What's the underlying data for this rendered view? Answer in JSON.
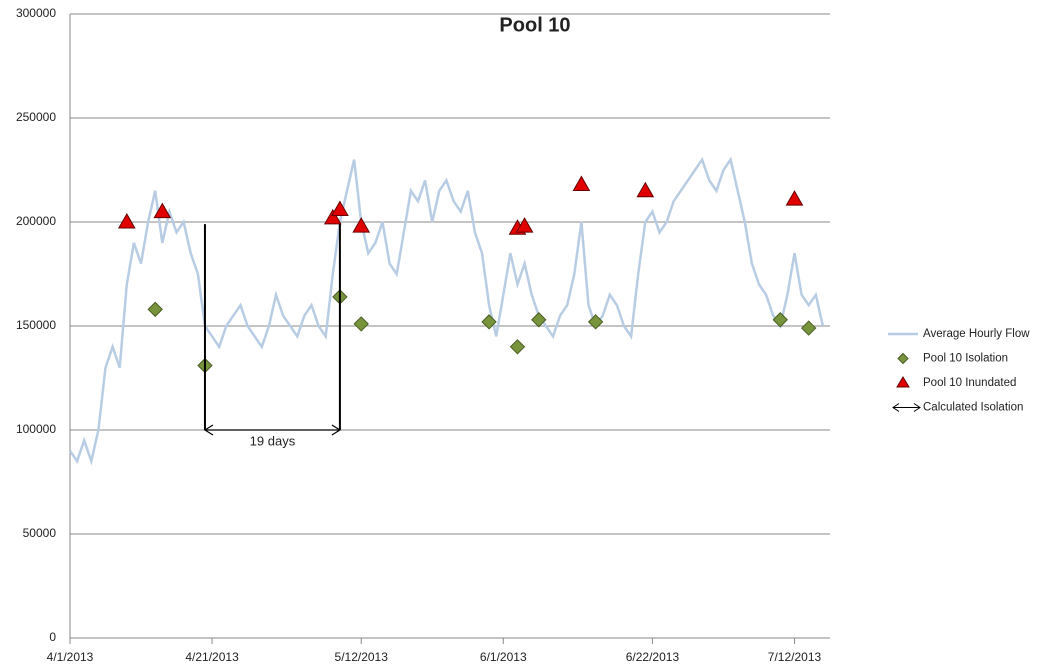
{
  "chart_data": {
    "type": "line",
    "title": "Pool 10",
    "xlim": [
      "2013-04-01",
      "2013-07-17"
    ],
    "xticks": [
      {
        "value": "2013-04-01",
        "label": "4/1/2013"
      },
      {
        "value": "2013-04-21",
        "label": "4/21/2013"
      },
      {
        "value": "2013-05-12",
        "label": "5/12/2013"
      },
      {
        "value": "2013-06-01",
        "label": "6/1/2013"
      },
      {
        "value": "2013-06-22",
        "label": "6/22/2013"
      },
      {
        "value": "2013-07-12",
        "label": "7/12/2013"
      }
    ],
    "ylim": [
      0,
      300000
    ],
    "yticks": [
      0,
      50000,
      100000,
      150000,
      200000,
      250000,
      300000
    ],
    "grid": true,
    "legend": "right",
    "series": [
      {
        "name": "Average Hourly Flow",
        "color": "#b8cce4",
        "marker": "line",
        "x": [
          "2013-04-01",
          "2013-04-02",
          "2013-04-03",
          "2013-04-04",
          "2013-04-05",
          "2013-04-06",
          "2013-04-07",
          "2013-04-08",
          "2013-04-09",
          "2013-04-10",
          "2013-04-11",
          "2013-04-12",
          "2013-04-13",
          "2013-04-14",
          "2013-04-15",
          "2013-04-16",
          "2013-04-17",
          "2013-04-18",
          "2013-04-19",
          "2013-04-20",
          "2013-04-21",
          "2013-04-22",
          "2013-04-23",
          "2013-04-24",
          "2013-04-25",
          "2013-04-26",
          "2013-04-27",
          "2013-04-28",
          "2013-04-29",
          "2013-04-30",
          "2013-05-01",
          "2013-05-02",
          "2013-05-03",
          "2013-05-04",
          "2013-05-05",
          "2013-05-06",
          "2013-05-07",
          "2013-05-08",
          "2013-05-09",
          "2013-05-10",
          "2013-05-11",
          "2013-05-12",
          "2013-05-13",
          "2013-05-14",
          "2013-05-15",
          "2013-05-16",
          "2013-05-17",
          "2013-05-18",
          "2013-05-19",
          "2013-05-20",
          "2013-05-21",
          "2013-05-22",
          "2013-05-23",
          "2013-05-24",
          "2013-05-25",
          "2013-05-26",
          "2013-05-27",
          "2013-05-28",
          "2013-05-29",
          "2013-05-30",
          "2013-05-31",
          "2013-06-01",
          "2013-06-02",
          "2013-06-03",
          "2013-06-04",
          "2013-06-05",
          "2013-06-06",
          "2013-06-07",
          "2013-06-08",
          "2013-06-09",
          "2013-06-10",
          "2013-06-11",
          "2013-06-12",
          "2013-06-13",
          "2013-06-14",
          "2013-06-15",
          "2013-06-16",
          "2013-06-17",
          "2013-06-18",
          "2013-06-19",
          "2013-06-20",
          "2013-06-21",
          "2013-06-22",
          "2013-06-23",
          "2013-06-24",
          "2013-06-25",
          "2013-06-26",
          "2013-06-27",
          "2013-06-28",
          "2013-06-29",
          "2013-06-30",
          "2013-07-01",
          "2013-07-02",
          "2013-07-03",
          "2013-07-04",
          "2013-07-05",
          "2013-07-06",
          "2013-07-07",
          "2013-07-08",
          "2013-07-09",
          "2013-07-10",
          "2013-07-11",
          "2013-07-12",
          "2013-07-13",
          "2013-07-14",
          "2013-07-15",
          "2013-07-16"
        ],
        "values": [
          90000,
          85000,
          95000,
          85000,
          100000,
          130000,
          140000,
          130000,
          170000,
          190000,
          180000,
          200000,
          215000,
          190000,
          205000,
          195000,
          200000,
          185000,
          175000,
          150000,
          145000,
          140000,
          150000,
          155000,
          160000,
          150000,
          145000,
          140000,
          150000,
          165000,
          155000,
          150000,
          145000,
          155000,
          160000,
          150000,
          145000,
          175000,
          200000,
          215000,
          230000,
          200000,
          185000,
          190000,
          200000,
          180000,
          175000,
          195000,
          215000,
          210000,
          220000,
          200000,
          215000,
          220000,
          210000,
          205000,
          215000,
          195000,
          185000,
          160000,
          145000,
          165000,
          185000,
          170000,
          180000,
          165000,
          155000,
          150000,
          145000,
          155000,
          160000,
          175000,
          200000,
          160000,
          150000,
          155000,
          165000,
          160000,
          150000,
          145000,
          175000,
          200000,
          205000,
          195000,
          200000,
          210000,
          215000,
          220000,
          225000,
          230000,
          220000,
          215000,
          225000,
          230000,
          215000,
          200000,
          180000,
          170000,
          165000,
          155000,
          150000,
          165000,
          185000,
          165000,
          160000,
          165000,
          150000
        ]
      },
      {
        "name": "Pool 10 Isolation",
        "color": "#77933c",
        "marker": "diamond",
        "x": [
          "2013-04-13",
          "2013-04-20",
          "2013-05-09",
          "2013-05-12",
          "2013-05-30",
          "2013-06-03",
          "2013-06-06",
          "2013-06-14",
          "2013-07-10",
          "2013-07-14"
        ],
        "values": [
          158000,
          131000,
          164000,
          151000,
          152000,
          140000,
          153000,
          152000,
          153000,
          149000
        ]
      },
      {
        "name": "Pool 10 Inundated",
        "color": "#e00000",
        "marker": "triangle",
        "x": [
          "2013-04-09",
          "2013-04-14",
          "2013-05-08",
          "2013-05-09",
          "2013-05-12",
          "2013-06-03",
          "2013-06-04",
          "2013-06-12",
          "2013-06-21",
          "2013-07-12"
        ],
        "values": [
          200000,
          205000,
          202000,
          206000,
          198000,
          197000,
          198000,
          218000,
          215000,
          211000
        ]
      }
    ],
    "annotation": {
      "label": "19 days",
      "legend": "Calculated Isolation",
      "x": [
        "2013-04-20",
        "2013-05-09"
      ],
      "y": 100000,
      "top": 199000
    }
  }
}
